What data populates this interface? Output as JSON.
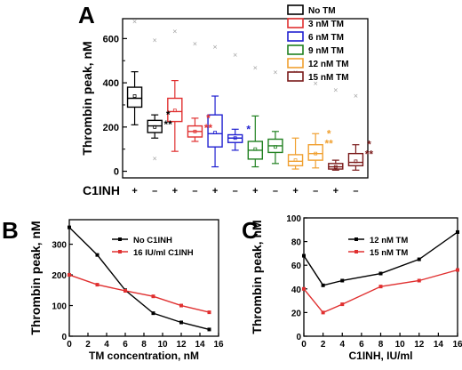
{
  "chart_data": [
    {
      "panel": "A",
      "type": "box",
      "ylabel": "Thrombin peak,   nM",
      "ylim": [
        -30,
        690
      ],
      "yticks": [
        "0",
        "200",
        "400",
        "600"
      ],
      "xrow_label": "C1INH",
      "legend": [
        {
          "name": "No TM",
          "color": "#000000"
        },
        {
          "name": "3 nM TM",
          "color": "#e03030"
        },
        {
          "name": "6 nM TM",
          "color": "#2020d0"
        },
        {
          "name": "9 nM TM",
          "color": "#208020"
        },
        {
          "name": "12 nM TM",
          "color": "#f0a030"
        },
        {
          "name": "15 nM TM",
          "color": "#7a1a1a"
        }
      ],
      "boxes": [
        {
          "group": "No TM",
          "c1inh": "+",
          "whisker_low": 210,
          "q1": 290,
          "median": 330,
          "q3": 380,
          "whisker_high": 450,
          "mean": 340,
          "outliers": [
            680
          ]
        },
        {
          "group": "No TM",
          "c1inh": "–",
          "whisker_low": 150,
          "q1": 175,
          "median": 205,
          "q3": 230,
          "whisker_high": 255,
          "mean": 200,
          "outliers": [
            595,
            60
          ]
        },
        {
          "group": "3 nM TM",
          "c1inh": "+",
          "whisker_low": 90,
          "q1": 225,
          "median": 270,
          "q3": 330,
          "whisker_high": 410,
          "mean": 275,
          "outliers": [
            635
          ]
        },
        {
          "group": "3 nM TM",
          "c1inh": "–",
          "whisker_low": 135,
          "q1": 155,
          "median": 180,
          "q3": 205,
          "whisker_high": 240,
          "mean": 180,
          "outliers": [
            580
          ]
        },
        {
          "group": "6 nM TM",
          "c1inh": "+",
          "whisker_low": 20,
          "q1": 110,
          "median": 170,
          "q3": 255,
          "whisker_high": 340,
          "mean": 175,
          "outliers": [
            565
          ]
        },
        {
          "group": "6 nM TM",
          "c1inh": "–",
          "whisker_low": 95,
          "q1": 130,
          "median": 150,
          "q3": 165,
          "whisker_high": 190,
          "mean": 150,
          "outliers": [
            530
          ]
        },
        {
          "group": "9 nM TM",
          "c1inh": "+",
          "whisker_low": 20,
          "q1": 55,
          "median": 95,
          "q3": 135,
          "whisker_high": 250,
          "mean": 100,
          "outliers": [
            470
          ]
        },
        {
          "group": "9 nM TM",
          "c1inh": "–",
          "whisker_low": 35,
          "q1": 85,
          "median": 115,
          "q3": 145,
          "whisker_high": 180,
          "mean": 110,
          "outliers": [
            450
          ]
        },
        {
          "group": "12 nM TM",
          "c1inh": "+",
          "whisker_low": 10,
          "q1": 25,
          "median": 45,
          "q3": 75,
          "whisker_high": 150,
          "mean": 50,
          "outliers": [
            450
          ]
        },
        {
          "group": "12 nM TM",
          "c1inh": "–",
          "whisker_low": 15,
          "q1": 50,
          "median": 80,
          "q3": 120,
          "whisker_high": 170,
          "mean": 80,
          "outliers": [
            400
          ]
        },
        {
          "group": "15 nM TM",
          "c1inh": "+",
          "whisker_low": 5,
          "q1": 10,
          "median": 20,
          "q3": 35,
          "whisker_high": 50,
          "mean": 20,
          "outliers": [
            370
          ]
        },
        {
          "group": "15 nM TM",
          "c1inh": "–",
          "whisker_low": 5,
          "q1": 25,
          "median": 40,
          "q3": 80,
          "whisker_high": 120,
          "mean": 45,
          "outliers": [
            345
          ]
        }
      ],
      "significance": [
        {
          "box": 1,
          "marks": [
            "*",
            "**"
          ],
          "color": "#000000"
        },
        {
          "box": 3,
          "marks": [
            "*",
            "**"
          ],
          "color": "#e03030"
        },
        {
          "box": 5,
          "marks": [
            "*"
          ],
          "color": "#2020d0"
        },
        {
          "box": 9,
          "marks": [
            "*",
            "**"
          ],
          "color": "#f0a030"
        },
        {
          "box": 11,
          "marks": [
            "*",
            "**"
          ],
          "color": "#7a1a1a"
        }
      ]
    },
    {
      "panel": "B",
      "type": "line",
      "xlabel": "TM concentration,   nM",
      "ylabel": "Thrombin peak,   nM",
      "xlim": [
        0,
        16
      ],
      "ylim": [
        0,
        380
      ],
      "xticks": [
        "0",
        "2",
        "4",
        "6",
        "8",
        "10",
        "12",
        "14",
        "16"
      ],
      "yticks": [
        "0",
        "100",
        "200",
        "300"
      ],
      "x": [
        0,
        3,
        6,
        9,
        12,
        15
      ],
      "series": [
        {
          "name": "No C1INH",
          "color": "#000000",
          "values": [
            355,
            265,
            150,
            75,
            45,
            22
          ]
        },
        {
          "name": "16 IU/ml C1INH",
          "color": "#e03030",
          "values": [
            200,
            168,
            148,
            130,
            100,
            78
          ]
        }
      ]
    },
    {
      "panel": "C",
      "type": "line",
      "xlabel": "C1INH,  IU/ml",
      "ylabel": "Thrombin peak,   nM",
      "xlim": [
        0,
        16
      ],
      "ylim": [
        0,
        100
      ],
      "xticks": [
        "0",
        "2",
        "4",
        "6",
        "8",
        "10",
        "12",
        "14",
        "16"
      ],
      "yticks": [
        "0",
        "20",
        "40",
        "60",
        "80",
        "100"
      ],
      "x": [
        0,
        2,
        4,
        8,
        12,
        16
      ],
      "series": [
        {
          "name": "12 nM TM",
          "color": "#000000",
          "values": [
            68,
            43,
            47,
            53,
            65,
            88
          ]
        },
        {
          "name": "15 nM TM",
          "color": "#e03030",
          "values": [
            40,
            20,
            27,
            42,
            47,
            56
          ]
        }
      ]
    }
  ]
}
